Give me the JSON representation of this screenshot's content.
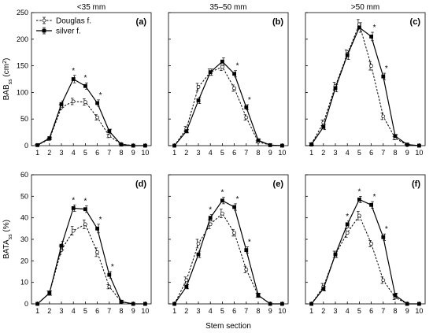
{
  "chart_data": {
    "type": "line",
    "x_label": "Stem section",
    "column_titles": [
      "<35 mm",
      "35–50 mm",
      ">50 mm"
    ],
    "rows": [
      {
        "y_label_main": "BAB",
        "y_label_sub": "ss",
        "y_label_unit": " (cm",
        "y_label_sup": "2",
        "y_label_end": ")",
        "ylim": [
          0,
          250
        ],
        "yticks": [
          0,
          50,
          100,
          150,
          200,
          250
        ]
      },
      {
        "y_label_main": "BATA",
        "y_label_sub": "ss",
        "y_label_unit": " (%)",
        "y_label_sup": "",
        "y_label_end": "",
        "ylim": [
          0,
          60
        ],
        "yticks": [
          0,
          10,
          20,
          30,
          40,
          50,
          60
        ]
      }
    ],
    "x": [
      1,
      2,
      3,
      4,
      5,
      6,
      7,
      8,
      9,
      10
    ],
    "xlim": [
      0.5,
      10.5
    ],
    "legend": {
      "position": "top-left",
      "entries": [
        {
          "name": "Douglas f.",
          "style": "dashed",
          "marker": "open-circle"
        },
        {
          "name": "silver f.",
          "style": "solid",
          "marker": "filled-circle"
        }
      ]
    },
    "panels": [
      {
        "label": "(a)",
        "row": 0,
        "col": 0,
        "series": [
          {
            "name": "Douglas f.",
            "values": [
              1,
              12,
              72,
              83,
              82,
              53,
              18,
              3,
              0,
              0
            ],
            "errors": [
              1,
              2,
              5,
              6,
              6,
              5,
              3,
              1,
              0,
              0
            ]
          },
          {
            "name": "silver f.",
            "values": [
              1,
              14,
              78,
              125,
              112,
              80,
              27,
              2,
              0,
              0
            ],
            "errors": [
              1,
              2,
              6,
              7,
              6,
              6,
              4,
              1,
              0,
              0
            ]
          }
        ],
        "stars": [
          4,
          5,
          6
        ]
      },
      {
        "label": "(b)",
        "row": 0,
        "col": 1,
        "series": [
          {
            "name": "Douglas f.",
            "values": [
              0,
              32,
              110,
              138,
              148,
              108,
              53,
              7,
              1,
              0
            ],
            "errors": [
              0,
              4,
              7,
              6,
              7,
              6,
              5,
              2,
              0,
              0
            ]
          },
          {
            "name": "silver f.",
            "values": [
              0,
              27,
              85,
              138,
              158,
              135,
              72,
              10,
              1,
              0
            ],
            "errors": [
              0,
              3,
              6,
              6,
              7,
              6,
              5,
              2,
              0,
              0
            ]
          }
        ],
        "stars": [
          6,
          7
        ]
      },
      {
        "label": "(c)",
        "row": 0,
        "col": 2,
        "series": [
          {
            "name": "Douglas f.",
            "values": [
              3,
              43,
              112,
              172,
              228,
              150,
              55,
              14,
              1,
              0
            ],
            "errors": [
              2,
              5,
              7,
              8,
              9,
              8,
              6,
              3,
              1,
              0
            ]
          },
          {
            "name": "silver f.",
            "values": [
              2,
              35,
              108,
              170,
              222,
              205,
              130,
              18,
              2,
              0
            ],
            "errors": [
              1,
              5,
              7,
              8,
              9,
              8,
              6,
              3,
              1,
              0
            ]
          }
        ],
        "stars": [
          6,
          7
        ]
      },
      {
        "label": "(d)",
        "row": 1,
        "col": 0,
        "series": [
          {
            "name": "Douglas f.",
            "values": [
              0,
              5,
              25,
              34,
              37,
              24,
              8,
              1,
              0,
              0
            ],
            "errors": [
              0,
              1,
              2,
              2,
              2,
              2,
              1,
              0,
              0,
              0
            ]
          },
          {
            "name": "silver f.",
            "values": [
              0,
              5,
              27,
              44.5,
              44,
              35,
              13.5,
              1,
              0,
              0
            ],
            "errors": [
              0,
              1,
              2,
              1.5,
              1.5,
              2,
              1.5,
              0.5,
              0,
              0
            ]
          }
        ],
        "stars": [
          4,
          5,
          6,
          7
        ]
      },
      {
        "label": "(e)",
        "row": 1,
        "col": 1,
        "series": [
          {
            "name": "Douglas f.",
            "values": [
              0,
              11,
              28,
              37,
              42,
              33,
              16,
              4,
              0,
              0
            ],
            "errors": [
              0,
              1.5,
              2,
              2,
              2,
              1.5,
              1.5,
              1,
              0,
              0
            ]
          },
          {
            "name": "silver f.",
            "values": [
              0,
              8,
              23,
              40,
              48,
              45,
              25,
              4,
              0,
              0
            ],
            "errors": [
              0,
              1,
              1.5,
              1.5,
              1.5,
              1.5,
              1.5,
              1,
              0,
              0
            ]
          }
        ],
        "stars": [
          4,
          5,
          6,
          7
        ]
      },
      {
        "label": "(f)",
        "row": 1,
        "col": 2,
        "series": [
          {
            "name": "Douglas f.",
            "values": [
              0,
              8,
              23,
              33,
              41,
              28,
              11,
              3,
              0,
              0
            ],
            "errors": [
              0,
              1.5,
              1.5,
              2,
              2,
              1.5,
              1.5,
              1,
              0,
              0
            ]
          },
          {
            "name": "silver f.",
            "values": [
              0,
              7,
              23,
              37,
              48.5,
              46,
              31,
              4,
              0,
              0
            ],
            "errors": [
              0,
              1,
              1.5,
              1.5,
              1.5,
              1.5,
              1.5,
              1,
              0,
              0
            ]
          }
        ],
        "stars": [
          4,
          5,
          6,
          7
        ]
      }
    ]
  }
}
